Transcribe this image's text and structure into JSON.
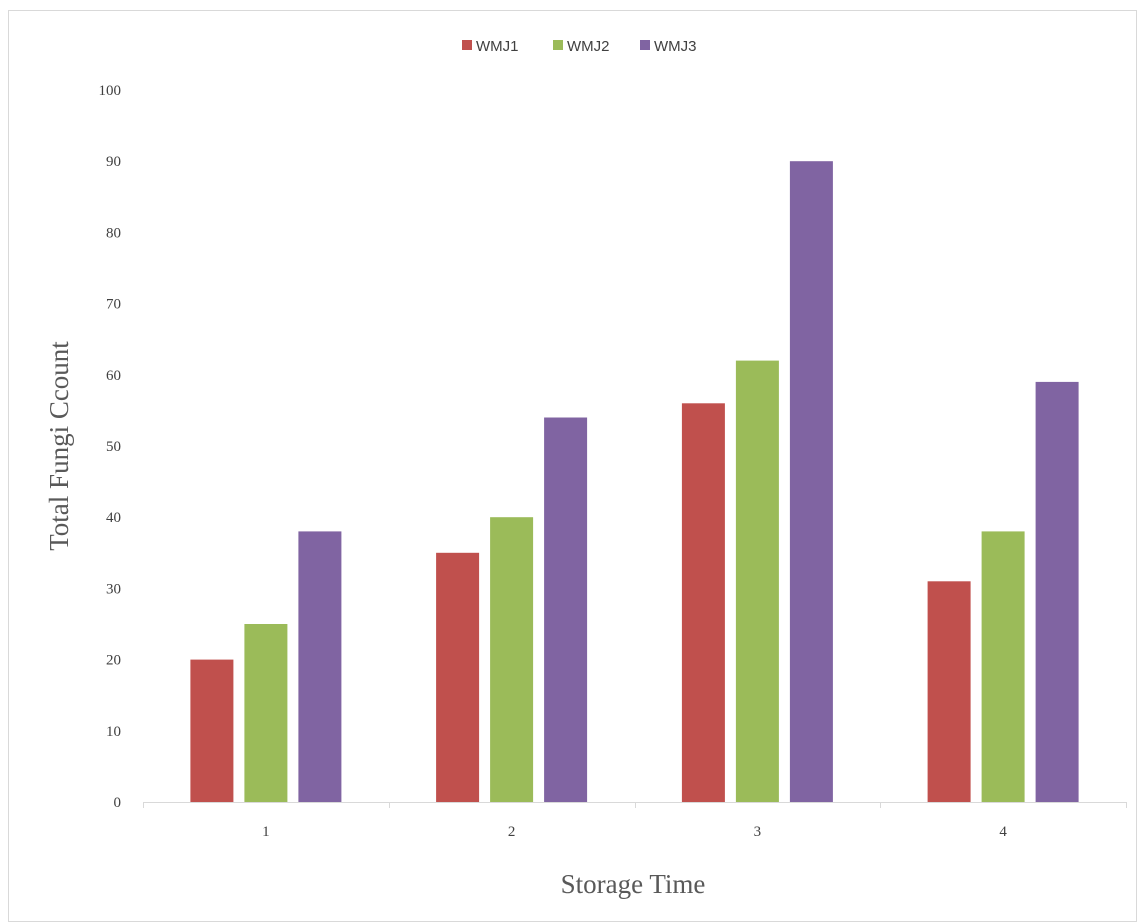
{
  "chart_data": {
    "type": "bar",
    "title": "",
    "xlabel": "Storage Time",
    "ylabel": "Total Fungi Ccount",
    "categories": [
      "1",
      "2",
      "3",
      "4"
    ],
    "ylim": [
      0,
      100
    ],
    "yticks": [
      0,
      10,
      20,
      30,
      40,
      50,
      60,
      70,
      80,
      90,
      100
    ],
    "grid": false,
    "legend_position": "top-center",
    "series": [
      {
        "name": "WMJ1",
        "color": "#C0504D",
        "values": [
          20,
          35,
          56,
          31
        ]
      },
      {
        "name": "WMJ2",
        "color": "#9BBB59",
        "values": [
          25,
          40,
          62,
          38
        ]
      },
      {
        "name": "WMJ3",
        "color": "#8064A2",
        "values": [
          38,
          54,
          90,
          59
        ]
      }
    ]
  }
}
